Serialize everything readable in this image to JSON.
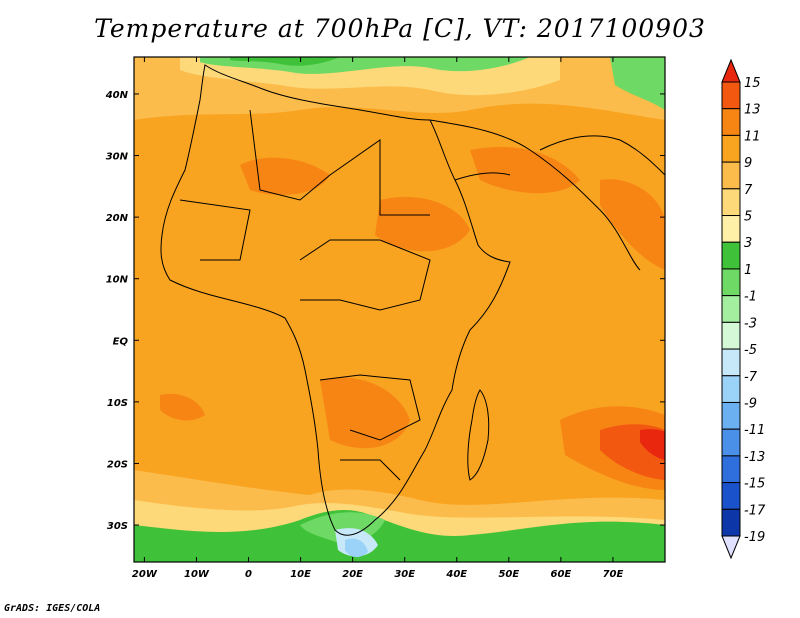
{
  "title": "Temperature at 700hPa [C], VT: 2017100903",
  "credit": "GrADS: IGES/COLA",
  "map": {
    "lat_labels": [
      "40N",
      "30N",
      "20N",
      "10N",
      "EQ",
      "10S",
      "20S",
      "30S"
    ],
    "lon_labels": [
      "20W",
      "10W",
      "0",
      "10E",
      "20E",
      "30E",
      "40E",
      "50E",
      "60E",
      "70E"
    ],
    "lon_range": [
      -22,
      80
    ],
    "lat_range": [
      -36,
      46
    ]
  },
  "colorbar": {
    "levels": [
      "15",
      "13",
      "11",
      "9",
      "7",
      "5",
      "3",
      "1",
      "-1",
      "-3",
      "-5",
      "-7",
      "-9",
      "-11",
      "-13",
      "-15",
      "-17",
      "-19"
    ],
    "colors": [
      "#e8270e",
      "#f2580f",
      "#f78514",
      "#f9a421",
      "#fbbc4b",
      "#fdd97a",
      "#fff0a8",
      "#3fc23a",
      "#6ed964",
      "#a4eea0",
      "#d5f8d6",
      "#c6e8f8",
      "#9bd2f7",
      "#6bb0f1",
      "#4a8fe8",
      "#2f6fdd",
      "#1a52cc",
      "#0d36a8",
      "#06247a"
    ]
  }
}
